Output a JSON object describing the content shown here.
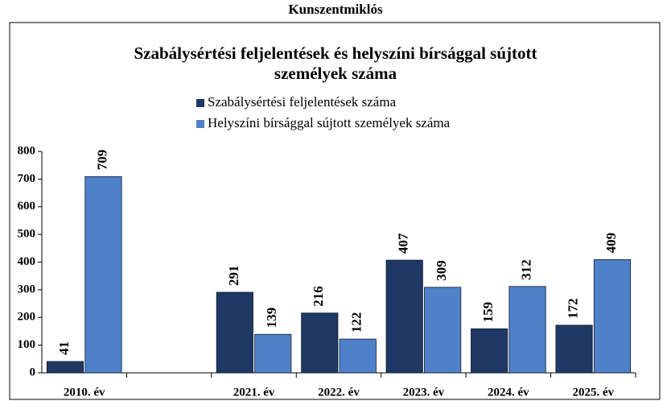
{
  "chart_data": {
    "type": "bar",
    "suptitle": "Kunszentmiklós",
    "title": "Szabálysértési feljelentések és helyszíni bírsággal sújtott személyek száma",
    "categories": [
      "2010. év",
      null,
      "2021. év",
      "2022. év",
      "2023. év",
      "2024. év",
      "2025. év"
    ],
    "series": [
      {
        "name": "Szabálysértési feljelentések száma",
        "color": "#1f3864",
        "values": [
          41,
          null,
          291,
          216,
          407,
          159,
          172
        ]
      },
      {
        "name": "Helyszíni bírsággal sújtott személyek száma",
        "color": "#4f81c9",
        "values": [
          709,
          null,
          139,
          122,
          309,
          312,
          409
        ]
      }
    ],
    "ylim": [
      0,
      800
    ],
    "yticks": [
      0,
      100,
      200,
      300,
      400,
      500,
      600,
      700,
      800
    ]
  }
}
